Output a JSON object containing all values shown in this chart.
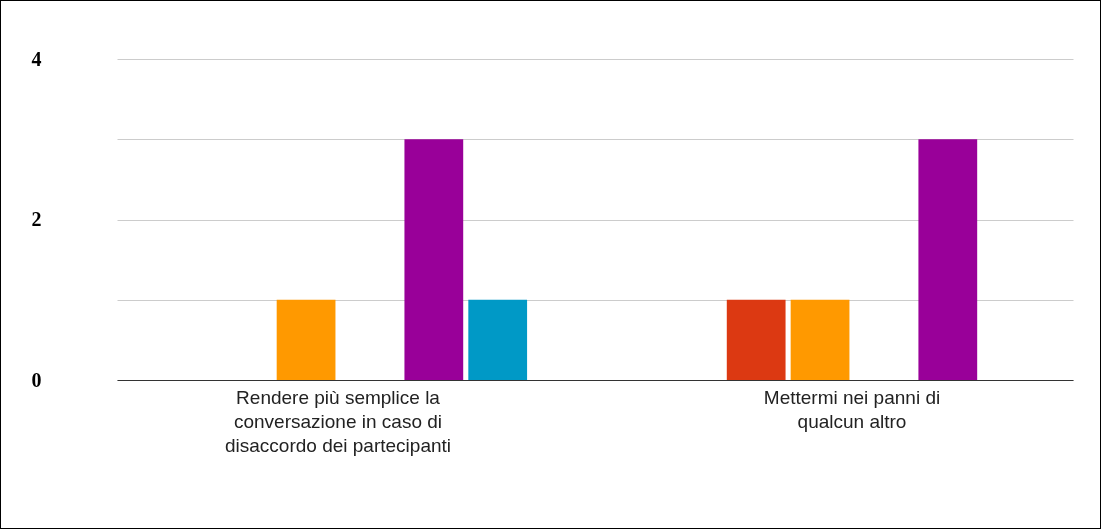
{
  "chart_data": {
    "type": "bar",
    "categories": [
      "Rendere più semplice la conversazione in caso di disaccordo dei partecipanti",
      "Mettermi nei panni di qualcun altro"
    ],
    "series": [
      {
        "color": "#3366cc",
        "values": [
          0,
          0
        ]
      },
      {
        "color": "#dc3912",
        "values": [
          0,
          1
        ]
      },
      {
        "color": "#ff9900",
        "values": [
          1,
          1
        ]
      },
      {
        "color": "#109618",
        "values": [
          0,
          0
        ]
      },
      {
        "color": "#990099",
        "values": [
          3,
          3
        ]
      },
      {
        "color": "#0099c6",
        "values": [
          1,
          0
        ]
      }
    ],
    "ylim": [
      0,
      4
    ],
    "yticks": [
      0,
      {
        "value": 1,
        "label": null
      },
      2,
      {
        "value": 3,
        "label": null
      },
      4
    ],
    "grid": true,
    "legend": false
  }
}
